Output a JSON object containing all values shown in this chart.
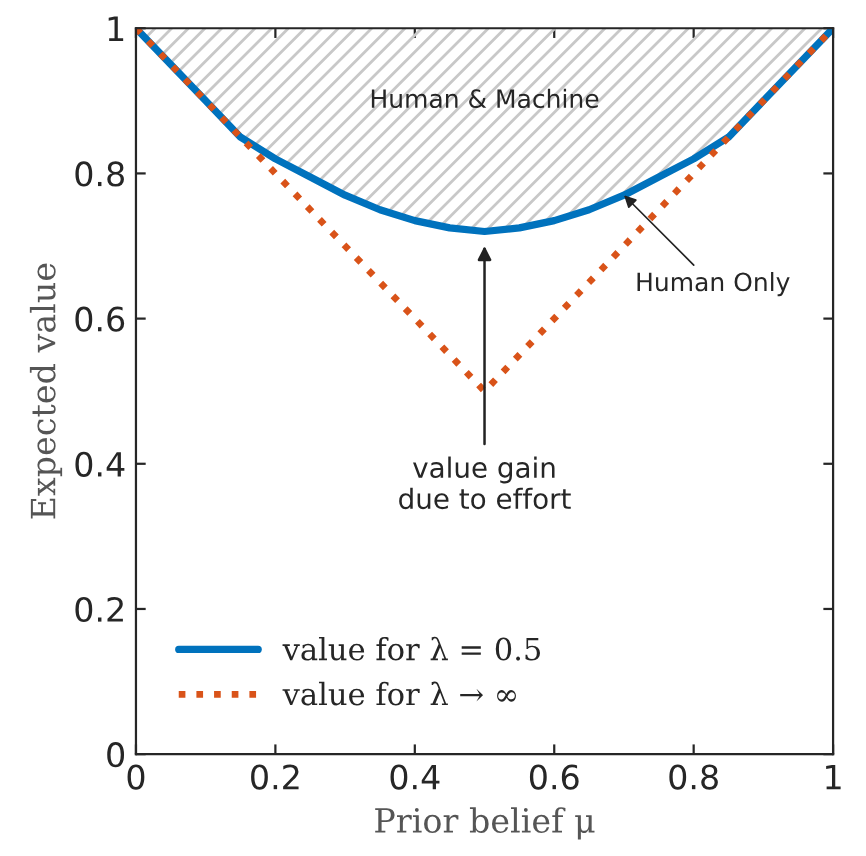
{
  "chart_data": {
    "type": "line",
    "xlabel": "Prior belief μ",
    "ylabel": "Expected value",
    "x": [
      0,
      0.05,
      0.1,
      0.15,
      0.2,
      0.25,
      0.3,
      0.35,
      0.4,
      0.45,
      0.5,
      0.55,
      0.6,
      0.65,
      0.7,
      0.75,
      0.8,
      0.85,
      0.9,
      0.95,
      1
    ],
    "series": [
      {
        "name": "value for λ = 0.5",
        "color": "#0072bd",
        "line_style": "solid",
        "values": [
          1,
          0.95,
          0.9,
          0.85,
          0.82,
          0.795,
          0.77,
          0.75,
          0.735,
          0.725,
          0.72,
          0.725,
          0.735,
          0.75,
          0.77,
          0.795,
          0.82,
          0.85,
          0.9,
          0.95,
          1
        ]
      },
      {
        "name": "value for λ → ∞",
        "color": "#d95319",
        "line_style": "dotted",
        "values": [
          1,
          0.95,
          0.9,
          0.85,
          0.8,
          0.75,
          0.7,
          0.65,
          0.6,
          0.55,
          0.5,
          0.55,
          0.6,
          0.65,
          0.7,
          0.75,
          0.8,
          0.85,
          0.9,
          0.95,
          1
        ]
      }
    ],
    "annotations": [
      "Human & Machine",
      {
        "text": "Human Only",
        "x": 0.7,
        "y": 0.77
      },
      "value gain\ndue to effort"
    ],
    "xlim": [
      0,
      1
    ],
    "ylim": [
      0,
      1
    ],
    "xticks": [
      0,
      0.2,
      0.4,
      0.6,
      0.8,
      1
    ],
    "yticks": [
      0,
      0.2,
      0.4,
      0.6,
      0.8,
      1
    ],
    "grid": false,
    "legend": "bottom left",
    "marker": "none"
  }
}
